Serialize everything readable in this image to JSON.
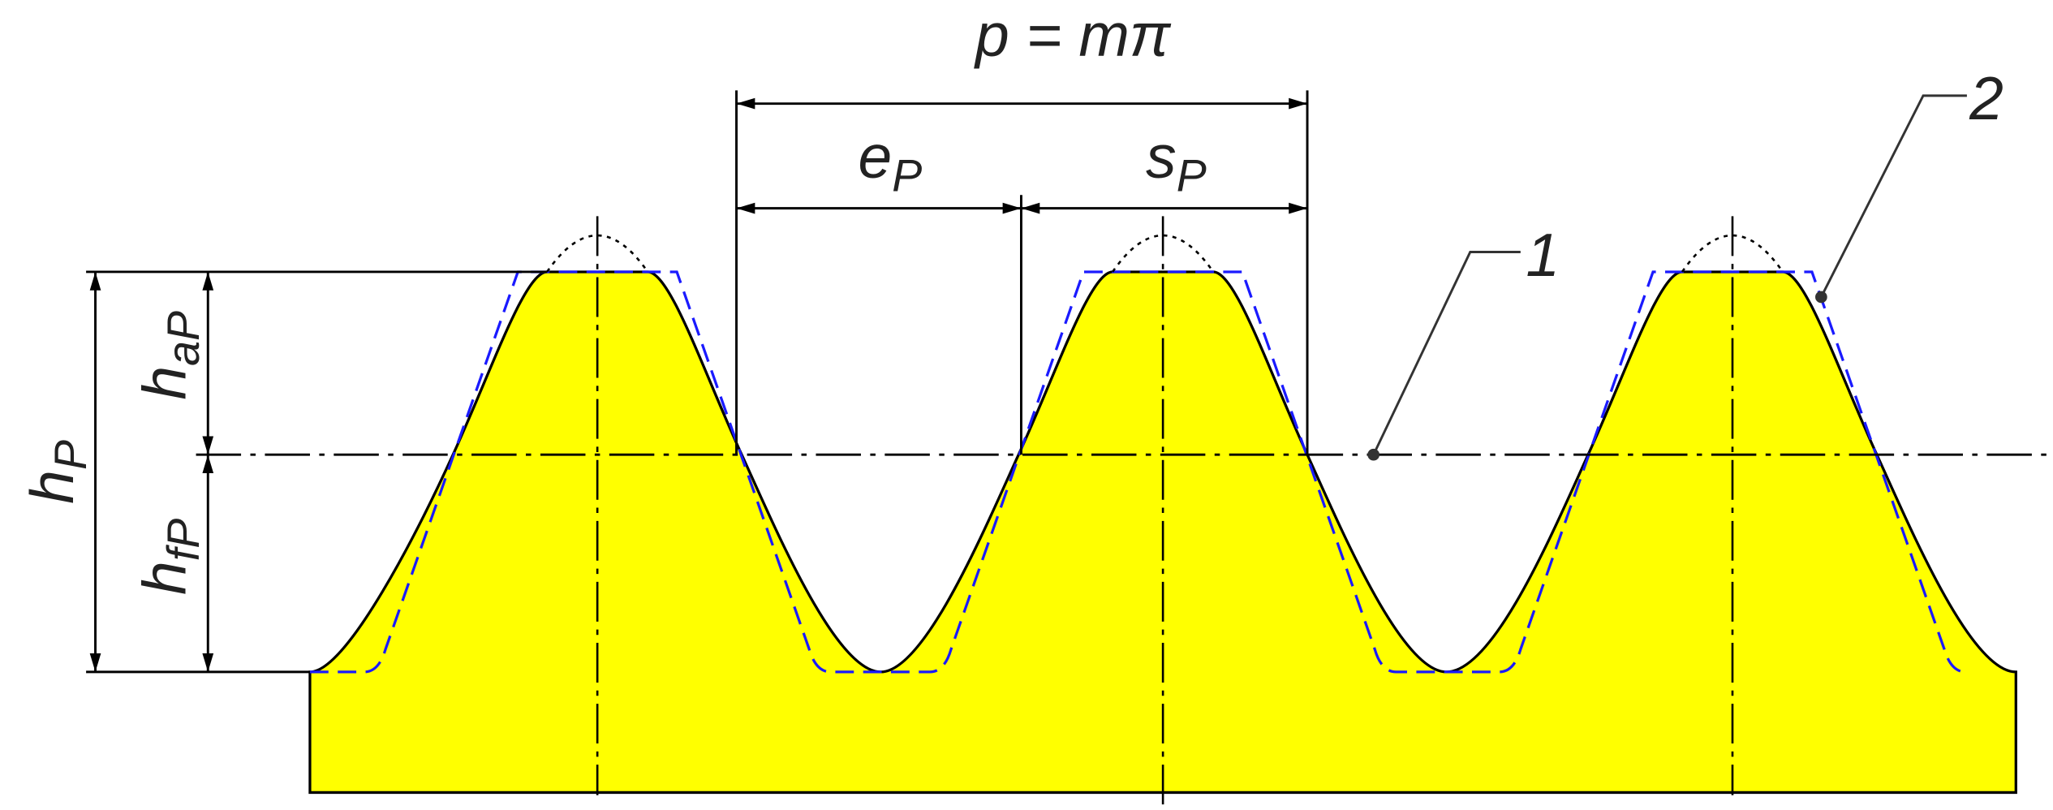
{
  "labels": {
    "pitch": "p = mπ",
    "space_width": {
      "base": "e",
      "sub": "P"
    },
    "tooth_thickness": {
      "base": "s",
      "sub": "P"
    },
    "tooth_depth": {
      "base": "h",
      "sub": "P"
    },
    "addendum": {
      "base": "h",
      "sub": "aP"
    },
    "dedendum": {
      "base": "h",
      "sub": "fP"
    },
    "callout_1": "1",
    "callout_2": "2"
  }
}
